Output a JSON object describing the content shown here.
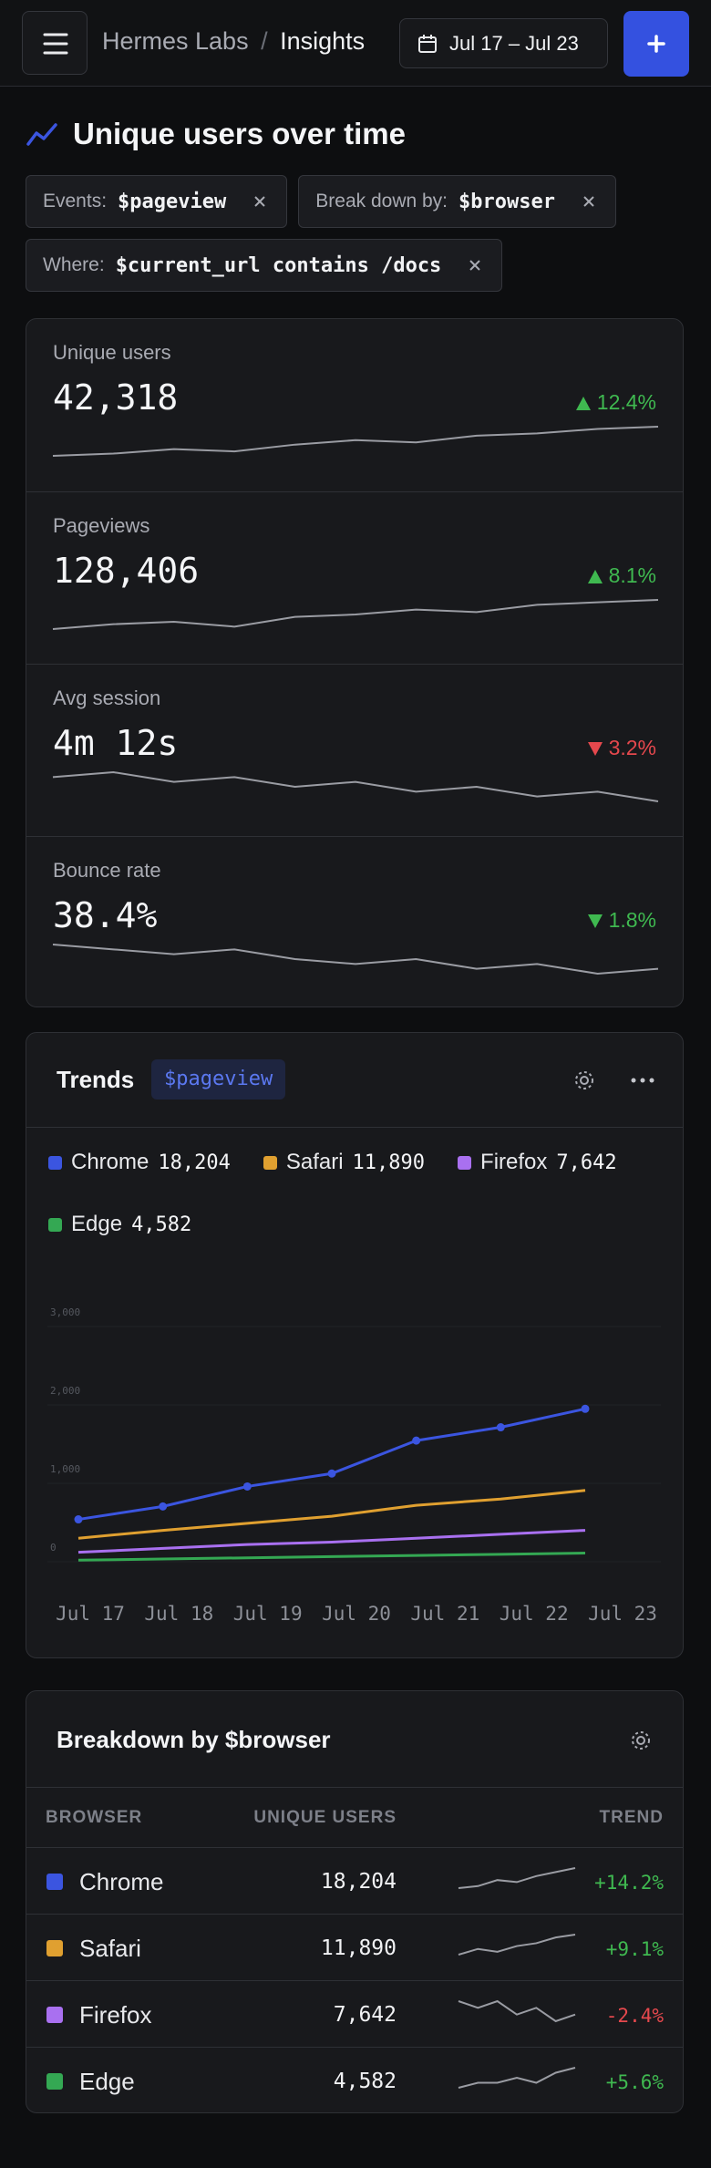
{
  "header": {
    "workspace": "Hermes Labs",
    "separator": "/",
    "page": "Insights",
    "date_range": "Jul 17 – Jul 23"
  },
  "title": "Unique users over time",
  "filters": [
    {
      "label": "Events:",
      "value": "$pageview"
    },
    {
      "label": "Break down by:",
      "value": "$browser"
    },
    {
      "label": "Where:",
      "value": "$current_url contains /docs"
    }
  ],
  "metrics": [
    {
      "label": "Unique users",
      "value": "42,318",
      "delta": "12.4%",
      "direction": "up",
      "color": "#3fb950",
      "spark": [
        10,
        11,
        13,
        12,
        15,
        17,
        16,
        19,
        20,
        22,
        23
      ]
    },
    {
      "label": "Pageviews",
      "value": "128,406",
      "delta": "8.1%",
      "direction": "up",
      "color": "#3fb950",
      "spark": [
        10,
        12,
        13,
        11,
        15,
        16,
        18,
        17,
        20,
        21,
        22
      ]
    },
    {
      "label": "Avg session",
      "value": "4m 12s",
      "delta": "3.2%",
      "direction": "down",
      "color": "#e5484d",
      "spark": [
        20,
        21,
        19,
        20,
        18,
        19,
        17,
        18,
        16,
        17,
        15
      ]
    },
    {
      "label": "Bounce rate",
      "value": "38.4%",
      "delta": "1.8%",
      "direction": "down",
      "color": "#3fb950",
      "spark": [
        20,
        19,
        18,
        19,
        17,
        16,
        17,
        15,
        16,
        14,
        15
      ]
    }
  ],
  "trends": {
    "title": "Trends",
    "tag": "$pageview"
  },
  "chart_data": {
    "type": "line",
    "categories": [
      "Jul 17",
      "Jul 18",
      "Jul 19",
      "Jul 20",
      "Jul 21",
      "Jul 22",
      "Jul 23"
    ],
    "series": [
      {
        "name": "Chrome",
        "total": "18,204",
        "color": "#3b55e0",
        "markers": true,
        "values": [
          540,
          705,
          960,
          1125,
          1545,
          1715,
          1950
        ]
      },
      {
        "name": "Safari",
        "total": "11,890",
        "color": "#e0a030",
        "markers": false,
        "values": [
          300,
          400,
          490,
          580,
          720,
          800,
          910
        ]
      },
      {
        "name": "Firefox",
        "total": "7,642",
        "color": "#a970f0",
        "markers": false,
        "values": [
          120,
          170,
          220,
          250,
          300,
          350,
          400
        ]
      },
      {
        "name": "Edge",
        "total": "4,582",
        "color": "#34a853",
        "markers": false,
        "values": [
          20,
          35,
          50,
          65,
          80,
          95,
          110
        ]
      }
    ],
    "ylim": [
      0,
      3000
    ],
    "yticks": [
      0,
      {
        "value": 1000,
        "label": "1,000"
      },
      {
        "value": 2000,
        "label": "2,000"
      },
      {
        "value": 3000,
        "label": "3,000"
      }
    ],
    "grid": true
  },
  "breakdown": {
    "title": "Breakdown by $browser",
    "columns": [
      "BROWSER",
      "UNIQUE USERS",
      "TREND"
    ],
    "rows": [
      {
        "name": "Chrome",
        "color": "#3b55e0",
        "users": "18,204",
        "trend": "+14.2%",
        "trend_color": "#3fb950",
        "spark": [
          10,
          11,
          14,
          13,
          16,
          18,
          20
        ]
      },
      {
        "name": "Safari",
        "color": "#e0a030",
        "users": "11,890",
        "trend": "+9.1%",
        "trend_color": "#3fb950",
        "spark": [
          12,
          14,
          13,
          15,
          16,
          18,
          19
        ]
      },
      {
        "name": "Firefox",
        "color": "#a970f0",
        "users": "7,642",
        "trend": "-2.4%",
        "trend_color": "#e5484d",
        "spark": [
          16,
          15,
          16,
          14,
          15,
          13,
          14
        ]
      },
      {
        "name": "Edge",
        "color": "#34a853",
        "users": "4,582",
        "trend": "+5.6%",
        "trend_color": "#3fb950",
        "spark": [
          12,
          13,
          13,
          14,
          13,
          15,
          16
        ]
      }
    ]
  }
}
